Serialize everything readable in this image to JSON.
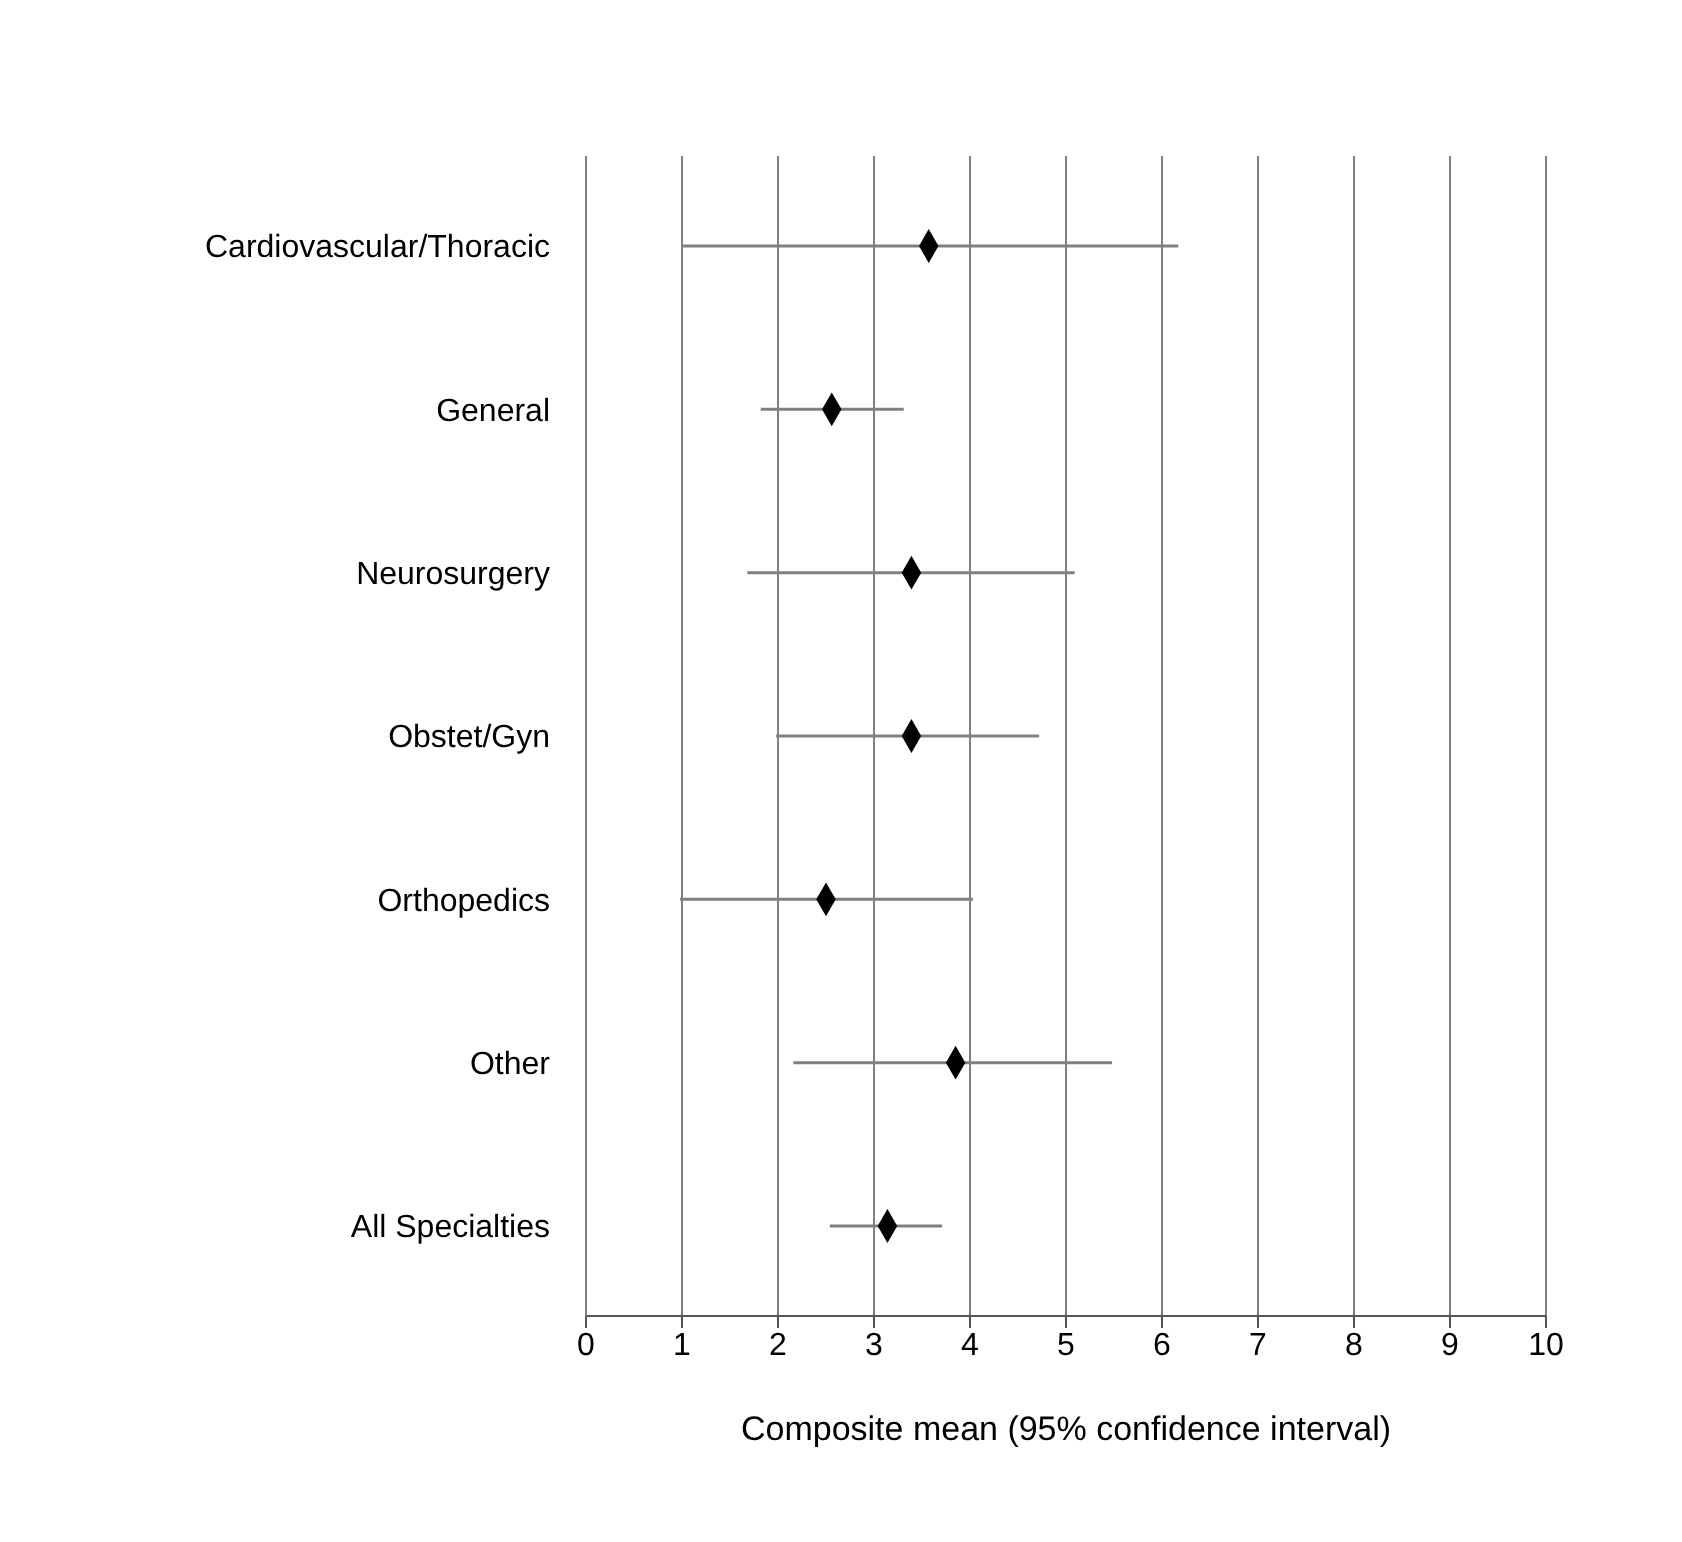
{
  "chart_data": {
    "type": "scatter",
    "orientation": "horizontal",
    "xlabel": "Composite mean (95% confidence interval)",
    "categories": [
      "Cardiovascular/Thoracic",
      "General",
      "Neurosurgery",
      "Obstet/Gyn",
      "Orthopedics",
      "Other",
      "All Specialties"
    ],
    "values": [
      3.57,
      2.56,
      3.39,
      3.39,
      2.5,
      3.85,
      3.14
    ],
    "errors": [
      [
        1.0,
        6.17
      ],
      [
        1.82,
        3.31
      ],
      [
        1.68,
        5.09
      ],
      [
        1.98,
        4.72
      ],
      [
        0.98,
        4.03
      ],
      [
        2.16,
        5.48
      ],
      [
        2.54,
        3.71
      ]
    ],
    "color": "#000000",
    "marker": "diamond",
    "grid": "x",
    "xlim": [
      0,
      10
    ],
    "xticks": [
      0,
      1,
      2,
      3,
      4,
      5,
      6,
      7,
      8,
      9,
      10
    ]
  }
}
